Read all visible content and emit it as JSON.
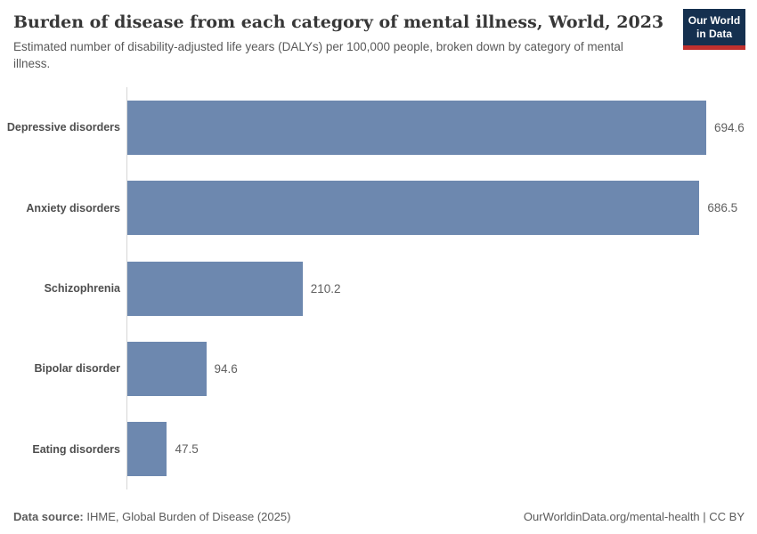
{
  "header": {
    "title": "Burden of disease from each category of mental illness, World, 2023",
    "subtitle": "Estimated number of disability-adjusted life years (DALYs) per 100,000 people, broken down by category of mental illness.",
    "logo": {
      "line1": "Our World",
      "line2": "in Data"
    }
  },
  "chart_data": {
    "type": "bar",
    "orientation": "horizontal",
    "title": "Burden of disease from each category of mental illness, World, 2023",
    "xlabel": "",
    "ylabel": "",
    "categories": [
      "Depressive disorders",
      "Anxiety disorders",
      "Schizophrenia",
      "Bipolar disorder",
      "Eating disorders"
    ],
    "values": [
      694.6,
      686.5,
      210.2,
      94.6,
      47.5
    ],
    "value_labels": [
      "694.6",
      "686.5",
      "210.2",
      "94.6",
      "47.5"
    ],
    "xlim": [
      0,
      694.6
    ],
    "grid": false,
    "legend": null,
    "bar_color": "#6d88af"
  },
  "footer": {
    "datasource_label": "Data source:",
    "datasource_value": " IHME, Global Burden of Disease (2025)",
    "link_right": "OurWorldinData.org/mental-health | CC BY"
  },
  "colors": {
    "bar": "#6d88af",
    "logo_background": "#15304f",
    "logo_stripe": "#c0302e",
    "axis_line": "#d6d6d6",
    "title_text": "#373737",
    "body_text": "#595959"
  }
}
